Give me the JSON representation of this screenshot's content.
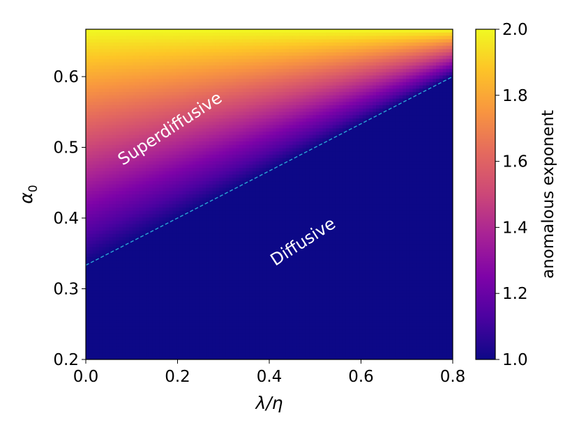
{
  "chart_data": {
    "type": "heatmap",
    "title": "",
    "xlabel": "λ/η",
    "ylabel": "α",
    "ylabel_subscript": "0",
    "xlim": [
      0.0,
      0.8
    ],
    "ylim": [
      0.2,
      0.667
    ],
    "xticks": [
      "0.0",
      "0.2",
      "0.4",
      "0.6",
      "0.8"
    ],
    "yticks": [
      "0.2",
      "0.3",
      "0.4",
      "0.5",
      "0.6"
    ],
    "xtick_values": [
      0.0,
      0.2,
      0.4,
      0.6,
      0.8
    ],
    "ytick_values": [
      0.2,
      0.3,
      0.4,
      0.5,
      0.6
    ],
    "colorbar": {
      "label": "anomalous exponent",
      "range": [
        1.0,
        2.0
      ],
      "ticks": [
        "1.0",
        "1.2",
        "1.4",
        "1.6",
        "1.8",
        "2.0"
      ],
      "tick_values": [
        1.0,
        1.2,
        1.4,
        1.6,
        1.8,
        2.0
      ],
      "colormap": "plasma"
    },
    "boundary": {
      "style": "dashed",
      "color": "#2aa7d6",
      "description": "α0 = (1 + λ/η)/3",
      "points": [
        [
          0.0,
          0.3333
        ],
        [
          0.667,
          0.5557
        ],
        [
          0.8,
          0.6
        ]
      ]
    },
    "regions": [
      {
        "label": "Superdiffusive",
        "x": 0.19,
        "y": 0.52,
        "angle_deg": -33
      },
      {
        "label": "Diffusive",
        "x": 0.48,
        "y": 0.36,
        "angle_deg": -33
      }
    ]
  },
  "colors": {
    "plasma_low": "#0d0887",
    "plasma_mid": "#cc4778",
    "plasma_high": "#f0f921",
    "boundary": "#2aa7d6"
  }
}
